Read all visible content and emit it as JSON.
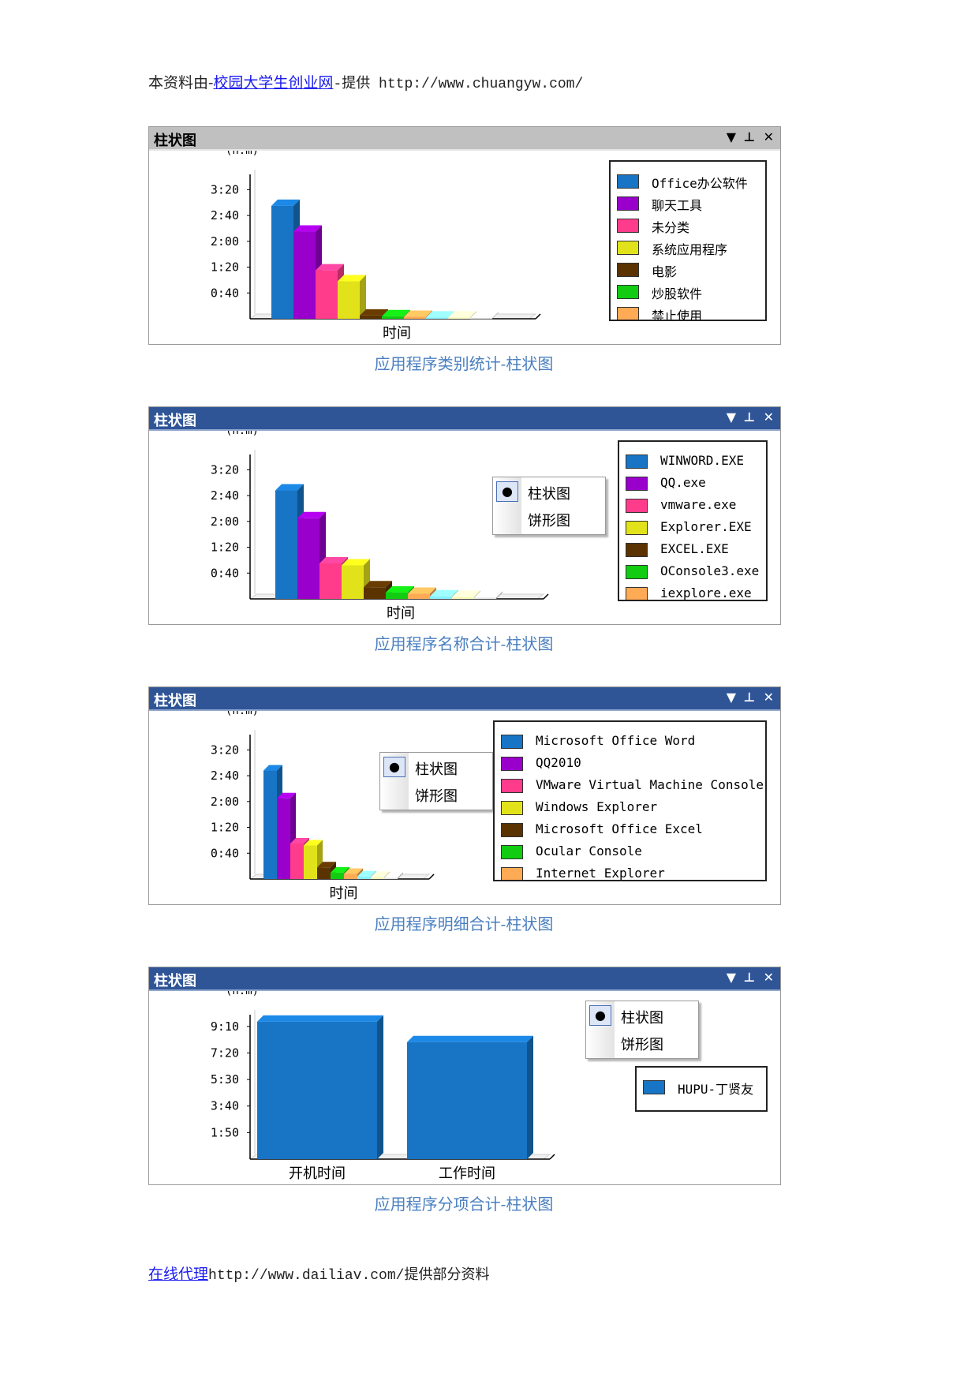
{
  "header": {
    "prefix": "本资料由-",
    "link_text": "校园大学生创业网",
    "suffix": "-提供 http://www.chuangyw.com/"
  },
  "footer": {
    "link_text": "在线代理",
    "suffix": "http://www.dailiav.com/提供部分资料"
  },
  "context_menu": {
    "bar_label": "柱状图",
    "pie_label": "饼形图"
  },
  "panels": [
    {
      "title": "柱状图",
      "caption": "应用程序类别统计-柱状图",
      "legend": [
        {
          "label": "Office办公软件",
          "color": "#1874c4"
        },
        {
          "label": "聊天工具",
          "color": "#9a00cc"
        },
        {
          "label": "未分类",
          "color": "#ff3c8c"
        },
        {
          "label": "系统应用程序",
          "color": "#e2e21a"
        },
        {
          "label": "电影",
          "color": "#5a3300"
        },
        {
          "label": "炒股软件",
          "color": "#11cc11"
        },
        {
          "label": "禁止使用",
          "color": "#ffaa55"
        }
      ]
    },
    {
      "title": "柱状图",
      "caption": "应用程序名称合计-柱状图",
      "legend": [
        {
          "label": "WINWORD.EXE",
          "color": "#1874c4"
        },
        {
          "label": "QQ.exe",
          "color": "#9a00cc"
        },
        {
          "label": "vmware.exe",
          "color": "#ff3c8c"
        },
        {
          "label": "Explorer.EXE",
          "color": "#e2e21a"
        },
        {
          "label": "EXCEL.EXE",
          "color": "#5a3300"
        },
        {
          "label": "OConsole3.exe",
          "color": "#11cc11"
        },
        {
          "label": "iexplore.exe",
          "color": "#ffaa55"
        }
      ]
    },
    {
      "title": "柱状图",
      "caption": "应用程序明细合计-柱状图",
      "legend": [
        {
          "label": "Microsoft Office Word",
          "color": "#1874c4"
        },
        {
          "label": "QQ2010",
          "color": "#9a00cc"
        },
        {
          "label": "VMware Virtual Machine Console",
          "color": "#ff3c8c"
        },
        {
          "label": "Windows Explorer",
          "color": "#e2e21a"
        },
        {
          "label": "Microsoft Office Excel",
          "color": "#5a3300"
        },
        {
          "label": "Ocular Console",
          "color": "#11cc11"
        },
        {
          "label": "Internet Explorer",
          "color": "#ffaa55"
        }
      ]
    },
    {
      "title": "柱状图",
      "caption": "应用程序分项合计-柱状图",
      "legend": [
        {
          "label": "HUPU-丁贤友",
          "color": "#1874c4"
        }
      ]
    }
  ],
  "chart_data": [
    {
      "type": "bar",
      "xlabel": "时间",
      "ylabel": "(h:m)",
      "yticks": [
        "0:40",
        "1:20",
        "2:00",
        "2:40",
        "3:20"
      ],
      "ylim_minutes": [
        0,
        220
      ],
      "categories": [
        "Office办公软件",
        "聊天工具",
        "未分类",
        "系统应用程序",
        "电影",
        "炒股软件",
        "禁止使用",
        "",
        "",
        ""
      ],
      "values_minutes": [
        175,
        135,
        75,
        58,
        5,
        4,
        3,
        2,
        2,
        1
      ],
      "colors": [
        "#1874c4",
        "#9a00cc",
        "#ff3c8c",
        "#e2e21a",
        "#5a3300",
        "#11cc11",
        "#ffaa55",
        "#88f0ff",
        "#f7f7bb",
        "#e6e6e6"
      ]
    },
    {
      "type": "bar",
      "xlabel": "时间",
      "ylabel": "(h:m)",
      "yticks": [
        "0:40",
        "1:20",
        "2:00",
        "2:40",
        "3:20"
      ],
      "ylim_minutes": [
        0,
        220
      ],
      "categories": [
        "WINWORD.EXE",
        "QQ.exe",
        "vmware.exe",
        "Explorer.EXE",
        "EXCEL.EXE",
        "OConsole3.exe",
        "iexplore.exe",
        "",
        "",
        ""
      ],
      "values_minutes": [
        168,
        125,
        55,
        52,
        18,
        10,
        8,
        4,
        3,
        2
      ],
      "colors": [
        "#1874c4",
        "#9a00cc",
        "#ff3c8c",
        "#e2e21a",
        "#5a3300",
        "#11cc11",
        "#ffaa55",
        "#88f0ff",
        "#f7f7bb",
        "#e6e6e6"
      ]
    },
    {
      "type": "bar",
      "xlabel": "时间",
      "ylabel": "(h:m)",
      "yticks": [
        "0:40",
        "1:20",
        "2:00",
        "2:40",
        "3:20"
      ],
      "ylim_minutes": [
        0,
        220
      ],
      "categories": [
        "Microsoft Office Word",
        "QQ2010",
        "VMware Virtual Machine Console",
        "Windows Explorer",
        "Microsoft Office Excel",
        "Ocular Console",
        "Internet Explorer",
        "",
        "",
        ""
      ],
      "values_minutes": [
        168,
        125,
        55,
        52,
        18,
        10,
        8,
        4,
        3,
        2
      ],
      "colors": [
        "#1874c4",
        "#9a00cc",
        "#ff3c8c",
        "#e2e21a",
        "#5a3300",
        "#11cc11",
        "#ffaa55",
        "#88f0ff",
        "#f7f7bb",
        "#e6e6e6"
      ]
    },
    {
      "type": "bar",
      "xlabel": "",
      "ylabel": "(h:m)",
      "yticks": [
        "1:50",
        "3:40",
        "5:30",
        "7:20",
        "9:10"
      ],
      "ylim_minutes": [
        0,
        605
      ],
      "categories": [
        "开机时间",
        "工作时间"
      ],
      "values_minutes": [
        570,
        485
      ],
      "colors": [
        "#1874c4",
        "#1874c4"
      ]
    }
  ]
}
